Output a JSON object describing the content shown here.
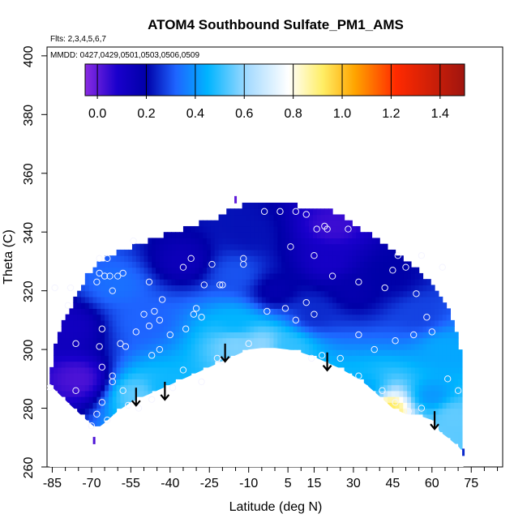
{
  "chart_data": {
    "type": "heatmap",
    "title": "ATOM4 Southbound Sulfate_PM1_AMS",
    "flights_label": "Flts: 2,3,4,5,6,7",
    "dates_label": "MMDD: 0427,0429,0501,0503,0506,0509",
    "xlabel": "Latitude (deg N)",
    "ylabel": "Theta (C)",
    "xlim": [
      -87,
      87
    ],
    "ylim": [
      260,
      403
    ],
    "x_ticks": [
      -85,
      -70,
      -55,
      -40,
      -25,
      -10,
      5,
      15,
      30,
      45,
      60,
      75
    ],
    "x_minor_ticks": [
      -80,
      -75,
      -65,
      -60,
      -50,
      -45,
      -35,
      -30,
      -20,
      -15,
      -5,
      0,
      10,
      20,
      25,
      35,
      40,
      50,
      55,
      65,
      70,
      80,
      85
    ],
    "y_ticks": [
      260,
      280,
      300,
      320,
      340,
      360,
      380,
      400
    ],
    "colorbar": {
      "min": -0.05,
      "max": 1.5,
      "ticks": [
        0.0,
        0.2,
        0.4,
        0.6,
        0.8,
        1.0,
        1.2,
        1.4
      ],
      "tick_labels": [
        "0.0",
        "0.2",
        "0.4",
        "0.6",
        "0.8",
        "1.0",
        "1.2",
        "1.4"
      ],
      "stops": [
        {
          "value": -0.05,
          "color": "#8a2be2"
        },
        {
          "value": 0.08,
          "color": "#1a00cc"
        },
        {
          "value": 0.2,
          "color": "#0000a8"
        },
        {
          "value": 0.32,
          "color": "#1e64ff"
        },
        {
          "value": 0.45,
          "color": "#00b4ff"
        },
        {
          "value": 0.62,
          "color": "#a9dcff"
        },
        {
          "value": 0.78,
          "color": "#ffffff"
        },
        {
          "value": 0.92,
          "color": "#ffee66"
        },
        {
          "value": 1.05,
          "color": "#ffa500"
        },
        {
          "value": 1.22,
          "color": "#ff2a00"
        },
        {
          "value": 1.5,
          "color": "#a0150f"
        }
      ]
    },
    "surface_boundary": [
      [
        -86,
        288
      ],
      [
        -78,
        281
      ],
      [
        -72,
        276
      ],
      [
        -68,
        273
      ],
      [
        -65,
        275
      ],
      [
        -60,
        279
      ],
      [
        -55,
        282
      ],
      [
        -50,
        284
      ],
      [
        -45,
        286
      ],
      [
        -40,
        288
      ],
      [
        -35,
        290
      ],
      [
        -30,
        292
      ],
      [
        -25,
        294
      ],
      [
        -20,
        296
      ],
      [
        -15,
        298
      ],
      [
        -10,
        300
      ],
      [
        -5,
        300.5
      ],
      [
        0,
        300.5
      ],
      [
        5,
        300
      ],
      [
        10,
        299
      ],
      [
        15,
        297.5
      ],
      [
        20,
        295.5
      ],
      [
        25,
        293.5
      ],
      [
        30,
        291
      ],
      [
        35,
        288
      ],
      [
        40,
        284
      ],
      [
        45,
        280
      ],
      [
        50,
        278
      ],
      [
        55,
        277.5
      ],
      [
        60,
        276
      ],
      [
        63,
        272
      ],
      [
        66,
        270
      ],
      [
        70,
        267
      ],
      [
        72,
        265
      ]
    ],
    "top_boundary": [
      [
        -86,
        288
      ],
      [
        -84,
        302
      ],
      [
        -80,
        311
      ],
      [
        -76,
        318
      ],
      [
        -72,
        325
      ],
      [
        -67,
        330
      ],
      [
        -60,
        333
      ],
      [
        -52,
        336
      ],
      [
        -42,
        339
      ],
      [
        -32,
        342
      ],
      [
        -22,
        345
      ],
      [
        -16,
        348
      ],
      [
        -10,
        350
      ],
      [
        0,
        350
      ],
      [
        8,
        349
      ],
      [
        15,
        348
      ],
      [
        22,
        347
      ],
      [
        30,
        343
      ],
      [
        38,
        338
      ],
      [
        48,
        332
      ],
      [
        55,
        327
      ],
      [
        60,
        322
      ],
      [
        64,
        317
      ],
      [
        67,
        312
      ],
      [
        69,
        306
      ],
      [
        71,
        300
      ],
      [
        72,
        292
      ],
      [
        72,
        265
      ]
    ],
    "field_features": [
      {
        "lat": -50,
        "theta": 310,
        "value": 0.32
      },
      {
        "lat": -60,
        "theta": 322,
        "value": 0.34
      },
      {
        "lat": -35,
        "theta": 330,
        "value": 0.14
      },
      {
        "lat": -15,
        "theta": 326,
        "value": 0.3
      },
      {
        "lat": -15,
        "theta": 309,
        "value": 0.45
      },
      {
        "lat": -15,
        "theta": 302,
        "value": 0.58
      },
      {
        "lat": -5,
        "theta": 302,
        "value": 0.6
      },
      {
        "lat": 5,
        "theta": 301,
        "value": 0.5
      },
      {
        "lat": -52,
        "theta": 285,
        "value": 0.55
      },
      {
        "lat": -43,
        "theta": 287,
        "value": 0.46
      },
      {
        "lat": 20,
        "theta": 330,
        "value": 0.1
      },
      {
        "lat": 22,
        "theta": 342,
        "value": 0.04
      },
      {
        "lat": 30,
        "theta": 320,
        "value": 0.18
      },
      {
        "lat": 45,
        "theta": 325,
        "value": 0.2
      },
      {
        "lat": 55,
        "theta": 312,
        "value": 0.28
      },
      {
        "lat": 65,
        "theta": 300,
        "value": 0.43
      },
      {
        "lat": 60,
        "theta": 284,
        "value": 0.4
      },
      {
        "lat": 68,
        "theta": 278,
        "value": 0.55
      },
      {
        "lat": 43,
        "theta": 280,
        "value": 0.95
      },
      {
        "lat": 35,
        "theta": 286,
        "value": 0.42
      },
      {
        "lat": -75,
        "theta": 290,
        "value": 0.02
      },
      {
        "lat": -78,
        "theta": 308,
        "value": 0.12
      },
      {
        "lat": -10,
        "theta": 340,
        "value": 0.22
      },
      {
        "lat": 15,
        "theta": 312,
        "value": 0.25
      },
      {
        "lat": 0,
        "theta": 320,
        "value": 0.18
      }
    ],
    "observations": [
      [
        -67,
        326
      ],
      [
        -68,
        323
      ],
      [
        -65,
        325
      ],
      [
        -63,
        325
      ],
      [
        -60,
        325
      ],
      [
        -58,
        326
      ],
      [
        -62,
        320
      ],
      [
        -67,
        331
      ],
      [
        -64,
        331
      ],
      [
        -54,
        337
      ],
      [
        -48,
        323
      ],
      [
        -43,
        317
      ],
      [
        -35,
        328
      ],
      [
        -32,
        331
      ],
      [
        -24,
        329
      ],
      [
        -27,
        322
      ],
      [
        -21,
        322
      ],
      [
        -12,
        329
      ],
      [
        -4,
        347
      ],
      [
        2,
        347
      ],
      [
        6,
        335
      ],
      [
        8,
        347
      ],
      [
        12,
        346
      ],
      [
        16,
        341
      ],
      [
        19,
        342
      ],
      [
        20,
        341
      ],
      [
        15,
        332
      ],
      [
        22,
        325
      ],
      [
        28,
        341
      ],
      [
        32,
        323
      ],
      [
        45,
        327
      ],
      [
        47,
        332
      ],
      [
        50,
        328
      ],
      [
        56,
        332
      ],
      [
        64,
        328
      ],
      [
        42,
        321
      ],
      [
        54,
        319
      ],
      [
        58,
        311
      ],
      [
        60,
        306
      ],
      [
        53,
        305
      ],
      [
        46,
        303
      ],
      [
        38,
        300
      ],
      [
        32,
        305
      ],
      [
        25,
        297
      ],
      [
        -78,
        321
      ],
      [
        -84,
        321
      ],
      [
        -79,
        315
      ],
      [
        -76,
        302
      ],
      [
        -66,
        307
      ],
      [
        -67,
        301
      ],
      [
        -66,
        294
      ],
      [
        -62,
        291
      ],
      [
        -59,
        302
      ],
      [
        -57,
        301
      ],
      [
        -53,
        306
      ],
      [
        -50,
        312
      ],
      [
        -48,
        308
      ],
      [
        -46,
        313
      ],
      [
        -44,
        310
      ],
      [
        -40,
        305
      ],
      [
        -34,
        307
      ],
      [
        -31,
        312
      ],
      [
        -28,
        311
      ],
      [
        -30,
        314
      ],
      [
        -20,
        322
      ],
      [
        -12,
        331
      ],
      [
        -3,
        313
      ],
      [
        4,
        314
      ],
      [
        8,
        310
      ],
      [
        12,
        316
      ],
      [
        15,
        312
      ],
      [
        -22,
        297
      ],
      [
        -20,
        296
      ],
      [
        -28,
        289
      ],
      [
        -35,
        293
      ],
      [
        -39,
        287
      ],
      [
        -47,
        283
      ],
      [
        -52,
        280
      ],
      [
        -56,
        281
      ],
      [
        -58,
        286
      ],
      [
        -62,
        289
      ],
      [
        -66,
        282
      ],
      [
        -68,
        278
      ],
      [
        -64,
        276
      ],
      [
        -70,
        274
      ],
      [
        -76,
        286
      ],
      [
        -86,
        287
      ],
      [
        18,
        298
      ],
      [
        14,
        297
      ],
      [
        32,
        291
      ],
      [
        41,
        286
      ],
      [
        46,
        282
      ],
      [
        51,
        279
      ],
      [
        56,
        280
      ],
      [
        66,
        290
      ],
      [
        70,
        286
      ],
      [
        -10,
        302
      ],
      [
        -44,
        300
      ],
      [
        -47,
        298
      ]
    ],
    "arrows": [
      {
        "lat": -53,
        "theta": 287
      },
      {
        "lat": -42,
        "theta": 289
      },
      {
        "lat": -19,
        "theta": 302
      },
      {
        "lat": 20,
        "theta": 299
      },
      {
        "lat": 61,
        "theta": 279
      }
    ],
    "markers": [
      {
        "lat": -15,
        "theta": 351,
        "value": 0.0
      },
      {
        "lat": 72,
        "theta": 265,
        "value": 0.25
      },
      {
        "lat": -69,
        "theta": 269,
        "value": 0.02
      }
    ]
  }
}
